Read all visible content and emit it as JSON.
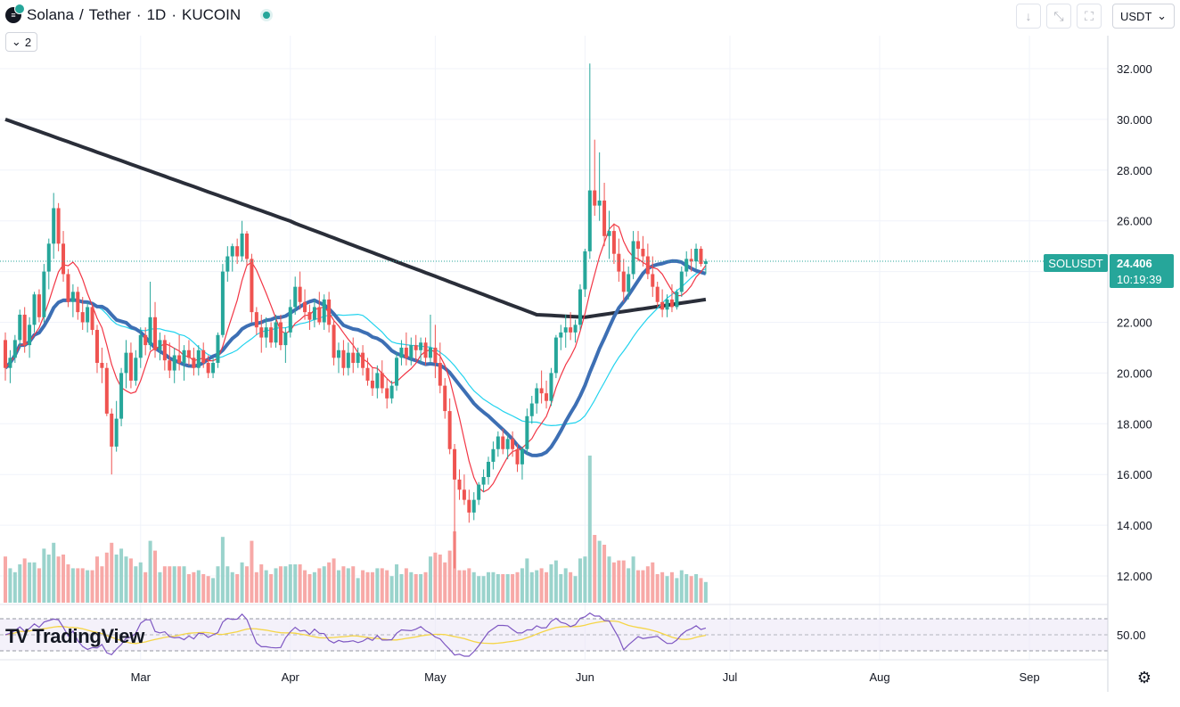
{
  "header": {
    "symbol_name": "Solana",
    "separator": "/",
    "quote_name": "Tether",
    "interval": "1D",
    "exchange": "KUCOIN",
    "dot": "·",
    "indicator_count": "2"
  },
  "toolbar": {
    "currency": "USDT"
  },
  "price_tag": {
    "ticker": "SOLUSDT",
    "price": "24.406",
    "countdown": "10:19:39"
  },
  "branding": {
    "name": "TradingView"
  },
  "colors": {
    "up": "#26a69a",
    "down": "#ef5350",
    "ma_short": "#f23645",
    "ma_cyan": "#22d3ee",
    "ma_blue": "#3d6fb4",
    "ma_long": "#2a2e39",
    "rsi_line": "#7e57c2",
    "rsi_ma": "#f5d547"
  },
  "chart_data": {
    "type": "candlestick",
    "title": "Solana / Tether · 1D · KUCOIN",
    "ylim": [
      11,
      33.5
    ],
    "y_ticks": [
      "32.000",
      "30.000",
      "28.000",
      "26.000",
      "24.000",
      "22.000",
      "20.000",
      "18.000",
      "16.000",
      "14.000",
      "12.000"
    ],
    "x_ticks": [
      "Mar",
      "Apr",
      "May",
      "Jun",
      "Jul",
      "Aug",
      "Sep"
    ],
    "x_tick_days": [
      28,
      59,
      89,
      120,
      150,
      181,
      212
    ],
    "last_close": 24.406,
    "rsi_ticks": [
      "50.00"
    ],
    "candles": [
      [
        0,
        21.3,
        21.6,
        19.7,
        20.2
      ],
      [
        1,
        20.2,
        20.9,
        19.6,
        20.6
      ],
      [
        2,
        20.6,
        21.5,
        20.4,
        21.3
      ],
      [
        3,
        21.3,
        22.5,
        21.0,
        22.3
      ],
      [
        4,
        22.3,
        22.6,
        20.8,
        21.1
      ],
      [
        5,
        21.1,
        22.2,
        20.6,
        21.9
      ],
      [
        6,
        21.9,
        23.2,
        21.6,
        23.1
      ],
      [
        7,
        23.1,
        23.3,
        22.0,
        22.2
      ],
      [
        8,
        22.2,
        24.3,
        22.0,
        24.0
      ],
      [
        9,
        24.0,
        25.3,
        23.3,
        25.1
      ],
      [
        10,
        25.1,
        27.1,
        24.5,
        26.5
      ],
      [
        11,
        26.5,
        26.7,
        24.8,
        25.1
      ],
      [
        12,
        25.1,
        25.6,
        23.6,
        23.9
      ],
      [
        13,
        23.9,
        24.1,
        22.6,
        22.8
      ],
      [
        14,
        22.8,
        23.5,
        22.2,
        23.2
      ],
      [
        15,
        23.2,
        23.4,
        22.1,
        22.4
      ],
      [
        16,
        22.4,
        23.0,
        21.7,
        22.0
      ],
      [
        17,
        22.0,
        22.8,
        21.6,
        22.6
      ],
      [
        18,
        22.6,
        22.7,
        21.5,
        21.7
      ],
      [
        19,
        21.7,
        21.9,
        20.0,
        20.4
      ],
      [
        20,
        20.4,
        21.0,
        19.6,
        20.2
      ],
      [
        21,
        20.2,
        20.4,
        18.3,
        18.4
      ],
      [
        22,
        18.4,
        18.6,
        16.0,
        17.1
      ],
      [
        23,
        17.1,
        18.9,
        16.9,
        18.2
      ],
      [
        24,
        18.2,
        20.2,
        17.9,
        20.0
      ],
      [
        25,
        20.0,
        21.3,
        19.4,
        20.8
      ],
      [
        26,
        20.8,
        21.2,
        19.4,
        19.7
      ],
      [
        27,
        19.7,
        20.9,
        19.5,
        20.6
      ],
      [
        28,
        20.6,
        21.8,
        20.2,
        21.5
      ],
      [
        29,
        21.5,
        21.8,
        20.7,
        21.1
      ],
      [
        30,
        21.1,
        23.6,
        20.9,
        22.2
      ],
      [
        31,
        22.2,
        22.8,
        20.6,
        20.9
      ],
      [
        32,
        20.9,
        21.6,
        20.5,
        21.3
      ],
      [
        33,
        21.3,
        21.5,
        20.1,
        20.5
      ],
      [
        34,
        20.5,
        21.2,
        19.8,
        20.1
      ],
      [
        35,
        20.1,
        21.0,
        19.6,
        20.7
      ],
      [
        36,
        20.7,
        21.5,
        20.1,
        20.4
      ],
      [
        37,
        20.4,
        21.1,
        19.7,
        20.9
      ],
      [
        38,
        20.9,
        21.3,
        20.3,
        20.6
      ],
      [
        39,
        20.6,
        21.0,
        19.9,
        20.2
      ],
      [
        40,
        20.2,
        21.1,
        19.9,
        20.9
      ],
      [
        41,
        20.9,
        21.2,
        20.2,
        20.4
      ],
      [
        42,
        20.4,
        20.7,
        19.8,
        20.0
      ],
      [
        43,
        20.0,
        20.6,
        19.8,
        20.4
      ],
      [
        44,
        20.4,
        21.6,
        20.2,
        21.5
      ],
      [
        45,
        21.5,
        24.3,
        21.4,
        24.0
      ],
      [
        46,
        24.0,
        25.0,
        23.6,
        24.6
      ],
      [
        47,
        24.6,
        25.1,
        24.0,
        25.0
      ],
      [
        48,
        25.0,
        25.3,
        24.3,
        24.6
      ],
      [
        49,
        24.6,
        26.0,
        24.4,
        25.5
      ],
      [
        50,
        25.5,
        25.6,
        24.2,
        24.5
      ],
      [
        51,
        24.5,
        24.7,
        22.0,
        22.4
      ],
      [
        52,
        22.4,
        22.6,
        21.5,
        21.8
      ],
      [
        53,
        21.8,
        22.3,
        20.8,
        21.4
      ],
      [
        54,
        21.4,
        22.2,
        21.0,
        21.8
      ],
      [
        55,
        21.8,
        22.0,
        21.0,
        21.2
      ],
      [
        56,
        21.2,
        22.3,
        21.0,
        22.0
      ],
      [
        57,
        22.0,
        22.3,
        20.9,
        21.1
      ],
      [
        58,
        21.1,
        21.8,
        20.4,
        21.6
      ],
      [
        59,
        21.6,
        22.9,
        21.4,
        22.6
      ],
      [
        60,
        22.6,
        23.8,
        22.3,
        23.4
      ],
      [
        61,
        23.4,
        24.0,
        22.5,
        22.8
      ],
      [
        62,
        22.8,
        23.3,
        22.1,
        22.4
      ],
      [
        63,
        22.4,
        22.7,
        21.7,
        22.1
      ],
      [
        64,
        22.1,
        22.9,
        21.8,
        22.6
      ],
      [
        65,
        22.6,
        23.2,
        21.9,
        22.0
      ],
      [
        66,
        22.0,
        23.1,
        21.7,
        22.9
      ],
      [
        67,
        22.9,
        23.2,
        21.6,
        21.9
      ],
      [
        68,
        21.9,
        22.1,
        20.3,
        20.6
      ],
      [
        69,
        20.6,
        21.2,
        20.0,
        20.9
      ],
      [
        70,
        20.9,
        21.3,
        19.9,
        20.2
      ],
      [
        71,
        20.2,
        21.2,
        19.9,
        20.8
      ],
      [
        72,
        20.8,
        21.4,
        20.0,
        20.4
      ],
      [
        73,
        20.4,
        21.0,
        20.2,
        20.8
      ],
      [
        74,
        20.8,
        21.1,
        19.9,
        20.2
      ],
      [
        75,
        20.2,
        20.6,
        19.5,
        19.7
      ],
      [
        76,
        19.7,
        20.2,
        19.1,
        19.4
      ],
      [
        77,
        19.4,
        20.3,
        19.0,
        20.0
      ],
      [
        78,
        20.0,
        20.5,
        19.2,
        19.4
      ],
      [
        79,
        19.4,
        19.8,
        18.6,
        19.0
      ],
      [
        80,
        19.0,
        19.7,
        18.8,
        19.5
      ],
      [
        81,
        19.5,
        20.8,
        19.3,
        20.6
      ],
      [
        82,
        20.6,
        21.3,
        20.3,
        21.0
      ],
      [
        83,
        21.0,
        21.6,
        20.3,
        20.6
      ],
      [
        84,
        20.6,
        21.4,
        20.3,
        21.1
      ],
      [
        85,
        21.1,
        21.5,
        20.5,
        20.9
      ],
      [
        86,
        20.9,
        21.4,
        20.4,
        21.2
      ],
      [
        87,
        21.2,
        21.4,
        20.3,
        20.6
      ],
      [
        88,
        20.6,
        22.3,
        20.4,
        21.0
      ],
      [
        89,
        21.0,
        21.9,
        19.8,
        20.4
      ],
      [
        90,
        20.4,
        21.2,
        19.2,
        19.5
      ],
      [
        91,
        19.5,
        19.8,
        18.2,
        18.5
      ],
      [
        92,
        18.5,
        19.0,
        16.8,
        17.0
      ],
      [
        93,
        17.0,
        17.2,
        12.3,
        15.8
      ],
      [
        94,
        15.8,
        16.2,
        15.0,
        15.4
      ],
      [
        95,
        15.4,
        16.0,
        14.8,
        15.0
      ],
      [
        96,
        15.0,
        15.4,
        14.1,
        14.5
      ],
      [
        97,
        14.5,
        15.3,
        14.2,
        15.0
      ],
      [
        98,
        15.0,
        15.7,
        14.8,
        15.6
      ],
      [
        99,
        15.6,
        16.2,
        15.3,
        15.9
      ],
      [
        100,
        15.9,
        16.7,
        15.6,
        16.5
      ],
      [
        101,
        16.5,
        17.3,
        16.2,
        17.0
      ],
      [
        102,
        17.0,
        17.7,
        16.7,
        17.5
      ],
      [
        103,
        17.5,
        17.8,
        16.8,
        17.0
      ],
      [
        104,
        17.0,
        17.6,
        16.6,
        17.4
      ],
      [
        105,
        17.4,
        17.7,
        16.7,
        17.0
      ],
      [
        106,
        17.0,
        17.2,
        16.1,
        16.4
      ],
      [
        107,
        16.4,
        17.1,
        15.8,
        17.0
      ],
      [
        108,
        17.0,
        18.6,
        16.8,
        18.3
      ],
      [
        109,
        18.3,
        19.1,
        18.0,
        18.8
      ],
      [
        110,
        18.8,
        19.6,
        18.4,
        19.4
      ],
      [
        111,
        19.4,
        20.1,
        18.8,
        19.2
      ],
      [
        112,
        19.2,
        19.7,
        18.6,
        18.9
      ],
      [
        113,
        18.9,
        20.2,
        18.7,
        20.0
      ],
      [
        114,
        20.0,
        21.5,
        19.8,
        21.4
      ],
      [
        115,
        21.4,
        21.9,
        20.9,
        21.6
      ],
      [
        116,
        21.6,
        22.3,
        21.0,
        21.8
      ],
      [
        117,
        21.8,
        22.4,
        21.3,
        21.6
      ],
      [
        118,
        21.6,
        22.1,
        21.2,
        21.9
      ],
      [
        119,
        21.9,
        23.5,
        21.7,
        23.3
      ],
      [
        120,
        23.3,
        24.9,
        23.0,
        24.8
      ],
      [
        121,
        24.8,
        32.2,
        24.5,
        27.2
      ],
      [
        122,
        27.2,
        29.2,
        26.2,
        26.6
      ],
      [
        123,
        26.6,
        28.7,
        26.0,
        26.8
      ],
      [
        124,
        26.8,
        27.5,
        25.0,
        25.4
      ],
      [
        125,
        25.4,
        26.4,
        24.5,
        25.6
      ],
      [
        126,
        25.6,
        25.9,
        24.3,
        24.7
      ],
      [
        127,
        24.7,
        25.3,
        23.6,
        24.0
      ],
      [
        128,
        24.0,
        24.5,
        22.8,
        23.2
      ],
      [
        129,
        23.2,
        24.2,
        22.9,
        23.9
      ],
      [
        130,
        23.9,
        25.6,
        23.7,
        25.2
      ],
      [
        131,
        25.2,
        25.6,
        24.4,
        24.9
      ],
      [
        132,
        24.9,
        25.4,
        24.2,
        24.6
      ],
      [
        133,
        24.6,
        25.1,
        23.7,
        23.9
      ],
      [
        134,
        23.9,
        24.6,
        23.0,
        23.4
      ],
      [
        135,
        23.4,
        23.6,
        22.6,
        22.8
      ],
      [
        136,
        22.8,
        23.3,
        22.2,
        22.5
      ],
      [
        137,
        22.5,
        23.1,
        22.2,
        22.9
      ],
      [
        138,
        22.9,
        23.5,
        22.4,
        22.6
      ],
      [
        139,
        22.6,
        23.3,
        22.5,
        23.2
      ],
      [
        140,
        23.2,
        24.2,
        23.0,
        24.0
      ],
      [
        141,
        24.0,
        24.8,
        23.8,
        24.5
      ],
      [
        142,
        24.5,
        24.9,
        24.0,
        24.4
      ],
      [
        143,
        24.4,
        25.1,
        24.1,
        24.9
      ],
      [
        144,
        24.9,
        25.0,
        24.2,
        24.3
      ],
      [
        145,
        24.3,
        24.5,
        23.9,
        24.406
      ]
    ]
  }
}
